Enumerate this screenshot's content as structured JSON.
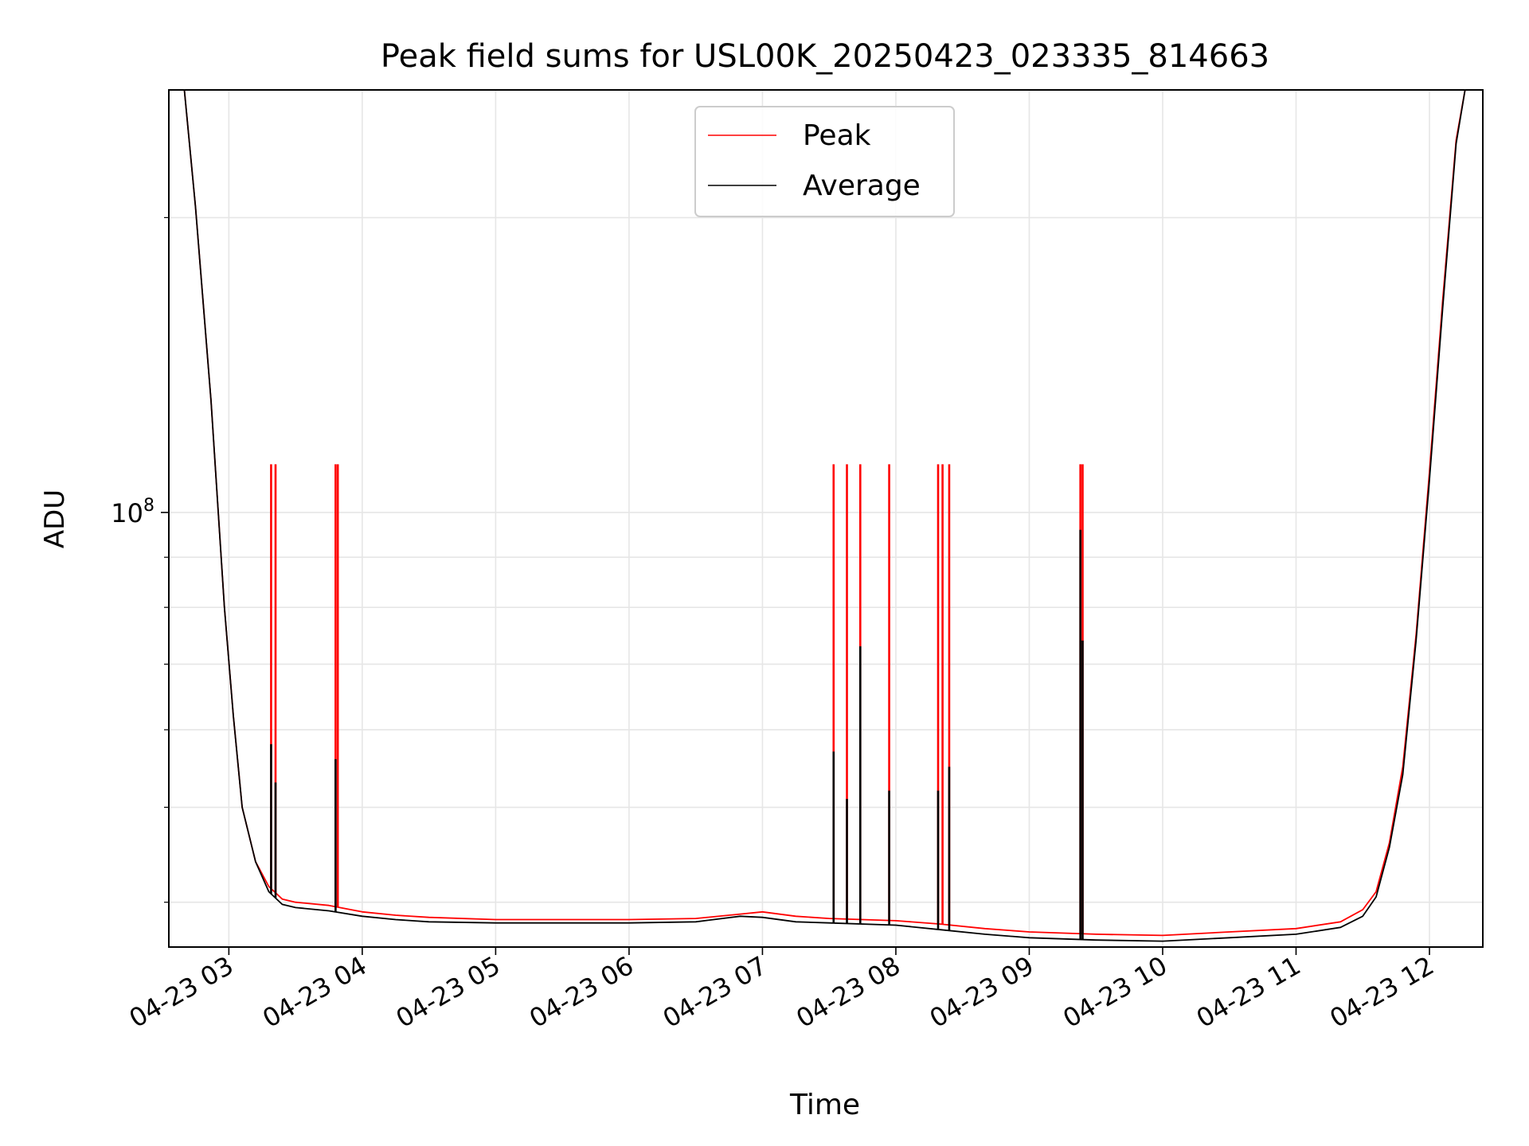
{
  "chart_data": {
    "type": "line",
    "title": "Peak field sums for USL00K_20250423_023335_814663",
    "xlabel": "Time",
    "ylabel": "ADU",
    "x_axis": "time (hours on 2025-04-23)",
    "y_scale": "log",
    "xlim": [
      "04-23 02:33",
      "04-23 12:24"
    ],
    "ylim": [
      36000000,
      270000000
    ],
    "x_ticks": [
      "04-23 03",
      "04-23 04",
      "04-23 05",
      "04-23 06",
      "04-23 07",
      "04-23 08",
      "04-23 09",
      "04-23 10",
      "04-23 11",
      "04-23 12"
    ],
    "y_ticks": [
      {
        "value": 100000000,
        "base": "10",
        "exp": "8"
      }
    ],
    "grid": true,
    "legend": {
      "position": "top-center"
    },
    "series": [
      {
        "name": "Peak",
        "color": "#ff0000",
        "points": [
          [
            "02:33",
            270000000
          ],
          [
            "02:40",
            270000000
          ],
          [
            "02:45",
            205000000
          ],
          [
            "02:52",
            130000000
          ],
          [
            "02:58",
            80000000
          ],
          [
            "03:02",
            62000000
          ],
          [
            "03:06",
            50000000
          ],
          [
            "03:12",
            44000000
          ],
          [
            "03:18",
            41500000
          ],
          [
            "03:24",
            40300000
          ],
          [
            "03:30",
            40000000
          ],
          [
            "03:45",
            39700000
          ],
          [
            "04:00",
            39100000
          ],
          [
            "04:15",
            38800000
          ],
          [
            "04:30",
            38600000
          ],
          [
            "05:00",
            38400000
          ],
          [
            "05:30",
            38400000
          ],
          [
            "06:00",
            38400000
          ],
          [
            "06:30",
            38500000
          ],
          [
            "06:50",
            38900000
          ],
          [
            "07:00",
            39100000
          ],
          [
            "07:15",
            38700000
          ],
          [
            "07:30",
            38500000
          ],
          [
            "08:00",
            38300000
          ],
          [
            "08:20",
            38000000
          ],
          [
            "08:40",
            37600000
          ],
          [
            "09:00",
            37300000
          ],
          [
            "09:30",
            37100000
          ],
          [
            "10:00",
            37000000
          ],
          [
            "10:30",
            37300000
          ],
          [
            "11:00",
            37600000
          ],
          [
            "11:20",
            38200000
          ],
          [
            "11:30",
            39300000
          ],
          [
            "11:36",
            41000000
          ],
          [
            "11:42",
            46000000
          ],
          [
            "11:48",
            55000000
          ],
          [
            "11:54",
            75000000
          ],
          [
            "12:00",
            110000000
          ],
          [
            "12:06",
            165000000
          ],
          [
            "12:12",
            240000000
          ],
          [
            "12:16",
            270000000
          ],
          [
            "12:24",
            270000000
          ]
        ],
        "spikes": [
          [
            "03:19",
            112000000
          ],
          [
            "03:21",
            112000000
          ],
          [
            "03:48",
            112000000
          ],
          [
            "03:49",
            112000000
          ],
          [
            "07:32",
            112000000
          ],
          [
            "07:38",
            112000000
          ],
          [
            "07:44",
            112000000
          ],
          [
            "07:57",
            112000000
          ],
          [
            "08:19",
            112000000
          ],
          [
            "08:21",
            112000000
          ],
          [
            "08:24",
            112000000
          ],
          [
            "09:23",
            112000000
          ],
          [
            "09:24",
            112000000
          ]
        ]
      },
      {
        "name": "Average",
        "color": "#000000",
        "points": [
          [
            "02:33",
            270000000
          ],
          [
            "02:40",
            270000000
          ],
          [
            "02:45",
            205000000
          ],
          [
            "02:52",
            130000000
          ],
          [
            "02:58",
            80000000
          ],
          [
            "03:02",
            62000000
          ],
          [
            "03:06",
            50000000
          ],
          [
            "03:12",
            44000000
          ],
          [
            "03:18",
            41000000
          ],
          [
            "03:24",
            39800000
          ],
          [
            "03:30",
            39500000
          ],
          [
            "03:45",
            39200000
          ],
          [
            "04:00",
            38700000
          ],
          [
            "04:15",
            38400000
          ],
          [
            "04:30",
            38200000
          ],
          [
            "05:00",
            38100000
          ],
          [
            "05:30",
            38100000
          ],
          [
            "06:00",
            38100000
          ],
          [
            "06:30",
            38200000
          ],
          [
            "06:50",
            38700000
          ],
          [
            "07:00",
            38600000
          ],
          [
            "07:15",
            38200000
          ],
          [
            "07:30",
            38100000
          ],
          [
            "08:00",
            37900000
          ],
          [
            "08:20",
            37500000
          ],
          [
            "08:40",
            37100000
          ],
          [
            "09:00",
            36800000
          ],
          [
            "09:30",
            36600000
          ],
          [
            "10:00",
            36500000
          ],
          [
            "10:30",
            36800000
          ],
          [
            "11:00",
            37100000
          ],
          [
            "11:20",
            37700000
          ],
          [
            "11:30",
            38700000
          ],
          [
            "11:36",
            40500000
          ],
          [
            "11:42",
            45500000
          ],
          [
            "11:48",
            54000000
          ],
          [
            "11:54",
            74000000
          ],
          [
            "12:00",
            108000000
          ],
          [
            "12:06",
            162000000
          ],
          [
            "12:12",
            238000000
          ],
          [
            "12:16",
            270000000
          ],
          [
            "12:24",
            270000000
          ]
        ],
        "spikes": [
          [
            "03:19",
            58000000
          ],
          [
            "03:21",
            53000000
          ],
          [
            "03:48",
            56000000
          ],
          [
            "07:32",
            57000000
          ],
          [
            "07:38",
            51000000
          ],
          [
            "07:44",
            73000000
          ],
          [
            "07:57",
            52000000
          ],
          [
            "08:19",
            52000000
          ],
          [
            "08:24",
            55000000
          ],
          [
            "09:23",
            96000000
          ],
          [
            "09:24",
            74000000
          ]
        ]
      }
    ]
  }
}
